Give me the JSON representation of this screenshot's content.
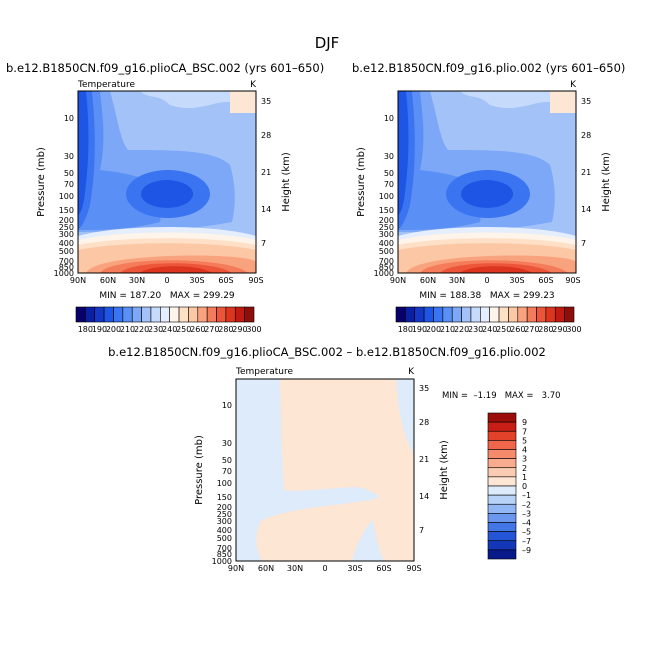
{
  "page": {
    "title": "DJF"
  },
  "chart_data": [
    {
      "type": "heatmap",
      "title": "b.e12.B1850CN.f09_g16.plioCA_BSC.002 (yrs 601–650)",
      "left_label": "Temperature",
      "right_label": "K",
      "ylabel": "Pressure (mb)",
      "ylabel_right": "Height (km)",
      "x_ticks": [
        "90N",
        "60N",
        "30N",
        "0",
        "30S",
        "60S",
        "90S"
      ],
      "y_ticks": [
        "10",
        "30",
        "50",
        "70",
        "100",
        "150",
        "200",
        "250",
        "300",
        "400",
        "500",
        "700",
        "850",
        "1000"
      ],
      "y_ticks_right": [
        "35",
        "28",
        "21",
        "14",
        "7"
      ],
      "stats": "MIN = 187.20   MAX = 299.29",
      "min": 187.2,
      "max": 299.29,
      "colorbar_labels": [
        "180",
        "190",
        "200",
        "210",
        "220",
        "230",
        "240",
        "250",
        "260",
        "270",
        "280",
        "290",
        "300"
      ],
      "colorbar_colors": [
        "#08006b",
        "#0b1fa3",
        "#1437c8",
        "#1e55e4",
        "#3a74f0",
        "#5a8ff5",
        "#7ca8f7",
        "#a2c2f8",
        "#c6dafb",
        "#e4eefd",
        "#fff4ea",
        "#fde0c6",
        "#fcc7a4",
        "#f9a37e",
        "#f47c5a",
        "#ec5538",
        "#dd3420",
        "#c21a12",
        "#8f0d0a"
      ]
    },
    {
      "type": "heatmap",
      "title": "b.e12.B1850CN.f09_g16.plio.002 (yrs 601–650)",
      "left_label": "",
      "right_label": "K",
      "ylabel": "Pressure (mb)",
      "ylabel_right": "Height (km)",
      "x_ticks": [
        "90N",
        "60N",
        "30N",
        "0",
        "30S",
        "60S",
        "90S"
      ],
      "y_ticks": [
        "10",
        "30",
        "50",
        "70",
        "100",
        "150",
        "200",
        "250",
        "300",
        "400",
        "500",
        "700",
        "850",
        "1000"
      ],
      "y_ticks_right": [
        "35",
        "28",
        "21",
        "14",
        "7"
      ],
      "stats": "MIN = 188.38   MAX = 299.23",
      "min": 188.38,
      "max": 299.23,
      "colorbar_labels": [
        "180",
        "190",
        "200",
        "210",
        "220",
        "230",
        "240",
        "250",
        "260",
        "270",
        "280",
        "290",
        "300"
      ],
      "colorbar_colors": [
        "#08006b",
        "#0b1fa3",
        "#1437c8",
        "#1e55e4",
        "#3a74f0",
        "#5a8ff5",
        "#7ca8f7",
        "#a2c2f8",
        "#c6dafb",
        "#e4eefd",
        "#fff4ea",
        "#fde0c6",
        "#fcc7a4",
        "#f9a37e",
        "#f47c5a",
        "#ec5538",
        "#dd3420",
        "#c21a12",
        "#8f0d0a"
      ]
    },
    {
      "type": "heatmap",
      "title": "b.e12.B1850CN.f09_g16.plioCA_BSC.002 – b.e12.B1850CN.f09_g16.plio.002",
      "left_label": "Temperature",
      "right_label": "K",
      "ylabel": "Pressure (mb)",
      "ylabel_right": "Height (km)",
      "x_ticks": [
        "90N",
        "60N",
        "30N",
        "0",
        "30S",
        "60S",
        "90S"
      ],
      "y_ticks": [
        "10",
        "30",
        "50",
        "70",
        "100",
        "150",
        "200",
        "250",
        "300",
        "400",
        "500",
        "700",
        "850",
        "1000"
      ],
      "y_ticks_right": [
        "35",
        "28",
        "21",
        "14",
        "7"
      ],
      "stats": "MIN =  –1.19   MAX =   3.70",
      "min": -1.19,
      "max": 3.7,
      "colorbar_labels": [
        "9",
        "7",
        "5",
        "4",
        "3",
        "2",
        "1",
        "0",
        "–1",
        "–2",
        "–3",
        "–4",
        "–5",
        "–7",
        "–9"
      ],
      "colorbar_colors": [
        "#9b0d0a",
        "#c81e15",
        "#e2422a",
        "#f0664a",
        "#f58a6d",
        "#f9ab8f",
        "#fccbb3",
        "#fde6d4",
        "#ddebfb",
        "#b8d2f8",
        "#93b6f4",
        "#6b97ef",
        "#4477e6",
        "#2455d6",
        "#1437b8",
        "#08198a"
      ]
    }
  ]
}
